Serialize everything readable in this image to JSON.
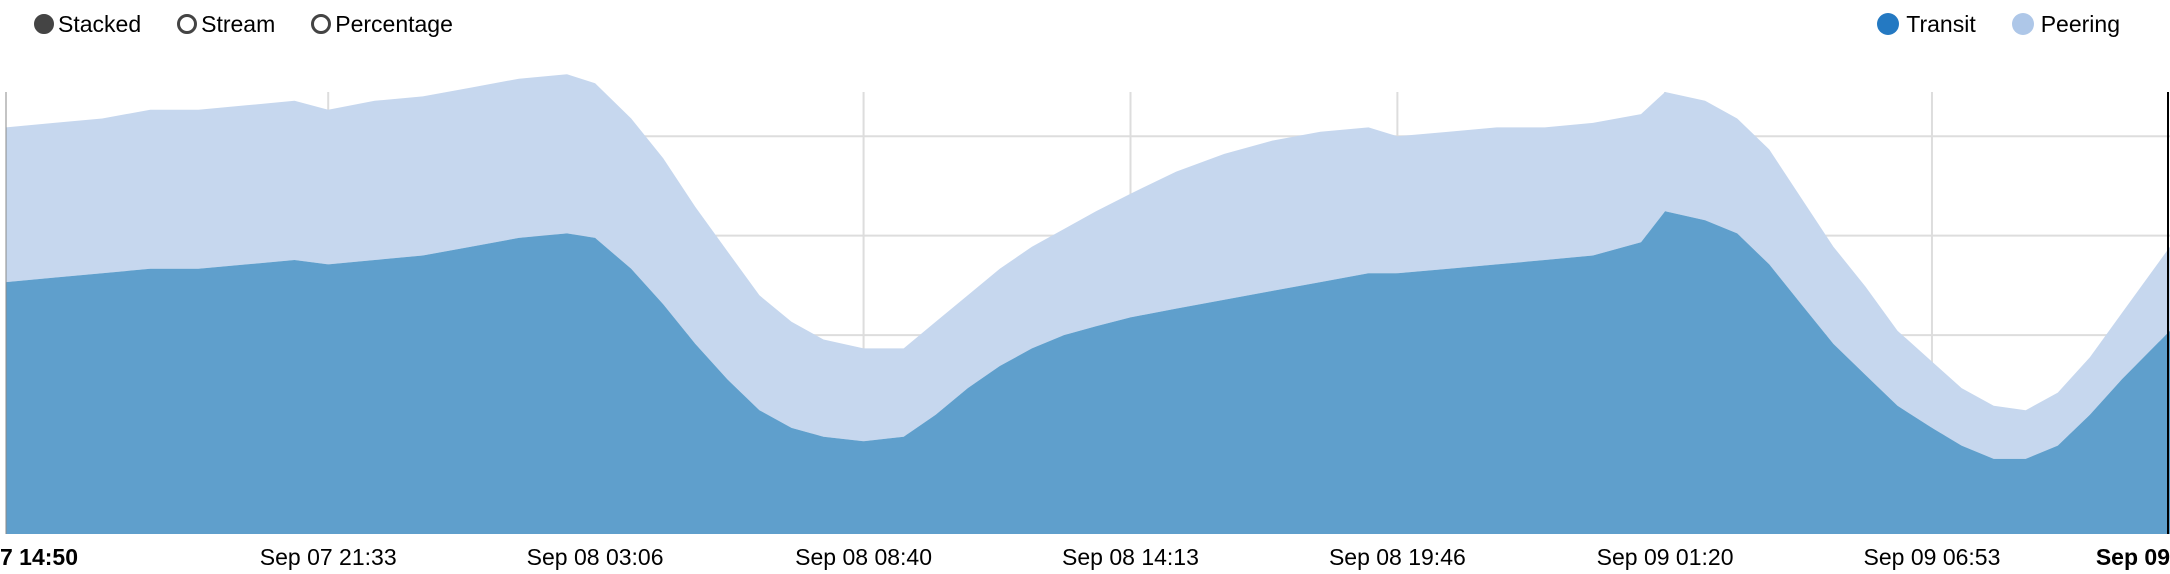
{
  "controls": {
    "modes": [
      {
        "label": "Stacked",
        "selected": true
      },
      {
        "label": "Stream",
        "selected": false
      },
      {
        "label": "Percentage",
        "selected": false
      }
    ]
  },
  "colors": {
    "transit": "#2479c2",
    "transit_area": "#5f9fcc",
    "peering": "#aec7e8",
    "peering_area": "#c6d7ee",
    "grid": "#dddddd"
  },
  "chart_data": {
    "type": "area",
    "stacked": true,
    "legend_position": "top-right",
    "grid": true,
    "x_tick_labels": [
      {
        "label": "7 14:50",
        "bold": true
      },
      {
        "label": "Sep 07 21:33",
        "bold": false
      },
      {
        "label": "Sep 08 03:06",
        "bold": false
      },
      {
        "label": "Sep 08 08:40",
        "bold": false
      },
      {
        "label": "Sep 08 14:13",
        "bold": false
      },
      {
        "label": "Sep 08 19:46",
        "bold": false
      },
      {
        "label": "Sep 09 01:20",
        "bold": false
      },
      {
        "label": "Sep 09 06:53",
        "bold": false
      },
      {
        "label": "Sep 09",
        "bold": true
      }
    ],
    "x_tick_times": [
      0,
      402,
      735,
      1070,
      1403,
      1736,
      2070,
      2403,
      2700
    ],
    "x_range": [
      0,
      2700
    ],
    "ylim": [
      0,
      100
    ],
    "series": [
      {
        "name": "Transit",
        "x": [
          0,
          60,
          120,
          180,
          240,
          300,
          360,
          402,
          460,
          520,
          580,
          640,
          700,
          735,
          780,
          820,
          860,
          900,
          940,
          980,
          1020,
          1070,
          1120,
          1160,
          1200,
          1240,
          1280,
          1320,
          1360,
          1403,
          1460,
          1520,
          1580,
          1640,
          1700,
          1736,
          1800,
          1860,
          1920,
          1980,
          2040,
          2070,
          2120,
          2160,
          2200,
          2240,
          2280,
          2320,
          2360,
          2403,
          2440,
          2480,
          2520,
          2560,
          2600,
          2640,
          2700
        ],
        "values": [
          57,
          58,
          59,
          60,
          60,
          61,
          62,
          61,
          62,
          63,
          65,
          67,
          68,
          67,
          60,
          52,
          43,
          35,
          28,
          24,
          22,
          21,
          22,
          27,
          33,
          38,
          42,
          45,
          47,
          49,
          51,
          53,
          55,
          57,
          59,
          59,
          60,
          61,
          62,
          63,
          66,
          73,
          71,
          68,
          61,
          52,
          43,
          36,
          29,
          24,
          20,
          17,
          17,
          20,
          27,
          35,
          46
        ]
      },
      {
        "name": "Peering",
        "x": [
          0,
          60,
          120,
          180,
          240,
          300,
          360,
          402,
          460,
          520,
          580,
          640,
          700,
          735,
          780,
          820,
          860,
          900,
          940,
          980,
          1020,
          1070,
          1120,
          1160,
          1200,
          1240,
          1280,
          1320,
          1360,
          1403,
          1460,
          1520,
          1580,
          1640,
          1700,
          1736,
          1800,
          1860,
          1920,
          1980,
          2040,
          2070,
          2120,
          2160,
          2200,
          2240,
          2280,
          2320,
          2360,
          2403,
          2440,
          2480,
          2520,
          2560,
          2600,
          2640,
          2700
        ],
        "values": [
          35,
          35,
          35,
          36,
          36,
          36,
          36,
          35,
          36,
          36,
          36,
          36,
          36,
          35,
          34,
          33,
          31,
          29,
          26,
          24,
          22,
          21,
          20,
          21,
          21,
          22,
          23,
          24,
          26,
          28,
          31,
          33,
          34,
          34,
          33,
          31,
          31,
          31,
          30,
          30,
          29,
          27,
          27,
          26,
          26,
          24,
          22,
          20,
          17,
          15,
          13,
          12,
          11,
          12,
          13,
          15,
          19
        ]
      }
    ]
  }
}
